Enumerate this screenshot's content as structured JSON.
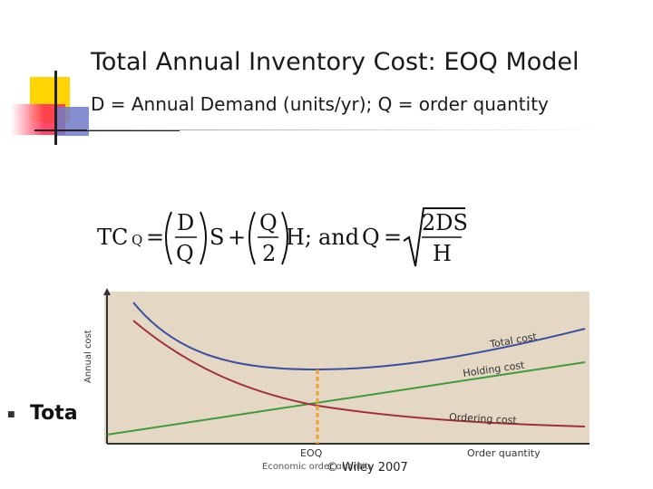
{
  "slide": {
    "title": "Total Annual Inventory Cost: EOQ Model",
    "subtitle": "D = Annual Demand (units/yr); Q = order quantity",
    "bullet_text": "Tota",
    "copyright": "© Wiley 2007"
  },
  "formula": {
    "tc": "TC",
    "tc_sub": "Q",
    "eq1": "=",
    "frac1_num": "D",
    "frac1_den": "Q",
    "s": "S",
    "plus": "+",
    "frac2_num": "Q",
    "frac2_den": "2",
    "h_semicolon": "H;",
    "and": "and",
    "q": "Q",
    "eq2": "=",
    "frac3_num": "2DS",
    "frac3_den": "H"
  },
  "chart_data": {
    "type": "line",
    "ylabel": "Annual cost",
    "xlabel": "Order quantity",
    "x_marker_label": "EOQ",
    "x_caption": "Economic order quantity",
    "series": [
      {
        "name": "Total cost",
        "color": "#3a4fa0"
      },
      {
        "name": "Holding cost",
        "color": "#3f9a3a"
      },
      {
        "name": "Ordering cost",
        "color": "#a0303a"
      }
    ],
    "background_color": "#e4d8c4",
    "eoq_line_color": "#f0a030"
  }
}
